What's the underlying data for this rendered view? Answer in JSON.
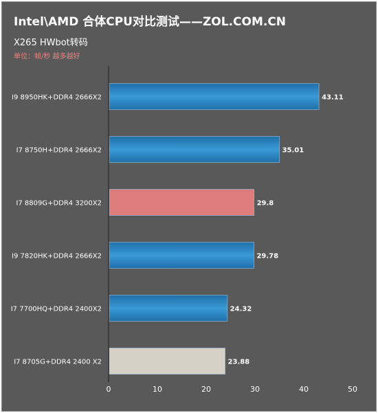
{
  "chart_data": {
    "type": "bar",
    "orientation": "horizontal",
    "title": "Intel\\AMD 合体CPU对比测试——ZOL.COM.CN",
    "subtitle": "X265 HWbot转码",
    "unit_note": "单位：帧/秒 越多越好",
    "categories": [
      "I9 8950HK+DDR4 2666X2",
      "I7 8750H+DDR4 2666X2",
      "I7 8809G+DDR4 3200X2",
      "I9 7820HK+DDR4 2666X2",
      "I7 7700HQ+DDR4 2400X2",
      "I7 8705G+DDR4 2400 X2"
    ],
    "values": [
      43.11,
      35.01,
      29.8,
      29.78,
      24.32,
      23.88
    ],
    "value_labels": [
      "43.11",
      "35.01",
      "29.8",
      "29.78",
      "24.32",
      "23.88"
    ],
    "bar_colors": [
      "#2e86c1",
      "#2e86c1",
      "#dc7d7b",
      "#2e86c1",
      "#2e86c1",
      "#d6d0c6"
    ],
    "xlim": [
      0,
      50
    ],
    "x_ticks": [
      0,
      10,
      20,
      30,
      40,
      50
    ],
    "grid": false,
    "legend": "none",
    "colors": {
      "background": "#595959",
      "text": "#ffffff",
      "unit_text": "#f08080",
      "axis": "#333333"
    }
  }
}
